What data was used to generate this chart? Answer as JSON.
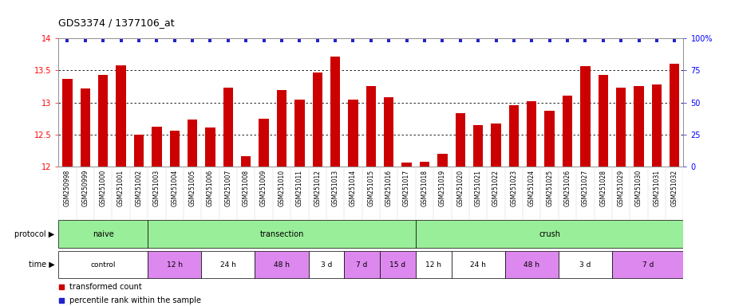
{
  "title": "GDS3374 / 1377106_at",
  "samples": [
    "GSM250998",
    "GSM250999",
    "GSM251000",
    "GSM251001",
    "GSM251002",
    "GSM251003",
    "GSM251004",
    "GSM251005",
    "GSM251006",
    "GSM251007",
    "GSM251008",
    "GSM251009",
    "GSM251010",
    "GSM251011",
    "GSM251012",
    "GSM251013",
    "GSM251014",
    "GSM251015",
    "GSM251016",
    "GSM251017",
    "GSM251018",
    "GSM251019",
    "GSM251020",
    "GSM251021",
    "GSM251022",
    "GSM251023",
    "GSM251024",
    "GSM251025",
    "GSM251026",
    "GSM251027",
    "GSM251028",
    "GSM251029",
    "GSM251030",
    "GSM251031",
    "GSM251032"
  ],
  "values": [
    13.37,
    13.22,
    13.43,
    13.58,
    12.5,
    12.62,
    12.56,
    12.73,
    12.61,
    13.23,
    12.16,
    12.75,
    13.2,
    13.05,
    13.47,
    13.72,
    13.04,
    13.26,
    13.08,
    12.07,
    12.08,
    12.2,
    12.84,
    12.65,
    12.67,
    12.96,
    13.02,
    12.87,
    13.11,
    13.57,
    13.43,
    13.23,
    13.25,
    13.28,
    13.6
  ],
  "ylim_min": 12.0,
  "ylim_max": 14.0,
  "yticks_left": [
    12,
    12.5,
    13,
    13.5,
    14
  ],
  "yticks_right": [
    0,
    25,
    50,
    75,
    100
  ],
  "bar_color": "#cc0000",
  "dot_color": "#2222cc",
  "bg_color": "#ffffff",
  "protocol_label": "protocol ▶",
  "time_label": "time ▶",
  "protocol_groups": [
    {
      "label": "naive",
      "start": 0,
      "end": 4,
      "color": "#99ee99"
    },
    {
      "label": "transection",
      "start": 5,
      "end": 19,
      "color": "#99ee99"
    },
    {
      "label": "crush",
      "start": 20,
      "end": 34,
      "color": "#99ee99"
    }
  ],
  "time_groups": [
    {
      "label": "control",
      "start": 0,
      "end": 4,
      "color": "#ffffff"
    },
    {
      "label": "12 h",
      "start": 5,
      "end": 7,
      "color": "#dd88ee"
    },
    {
      "label": "24 h",
      "start": 8,
      "end": 10,
      "color": "#ffffff"
    },
    {
      "label": "48 h",
      "start": 11,
      "end": 13,
      "color": "#dd88ee"
    },
    {
      "label": "3 d",
      "start": 14,
      "end": 15,
      "color": "#ffffff"
    },
    {
      "label": "7 d",
      "start": 16,
      "end": 17,
      "color": "#dd88ee"
    },
    {
      "label": "15 d",
      "start": 18,
      "end": 19,
      "color": "#dd88ee"
    },
    {
      "label": "12 h",
      "start": 20,
      "end": 21,
      "color": "#ffffff"
    },
    {
      "label": "24 h",
      "start": 22,
      "end": 24,
      "color": "#ffffff"
    },
    {
      "label": "48 h",
      "start": 25,
      "end": 27,
      "color": "#dd88ee"
    },
    {
      "label": "3 d",
      "start": 28,
      "end": 30,
      "color": "#ffffff"
    },
    {
      "label": "7 d",
      "start": 31,
      "end": 34,
      "color": "#dd88ee"
    }
  ],
  "legend": [
    {
      "label": "transformed count",
      "color": "#cc0000"
    },
    {
      "label": "percentile rank within the sample",
      "color": "#2222cc"
    }
  ]
}
